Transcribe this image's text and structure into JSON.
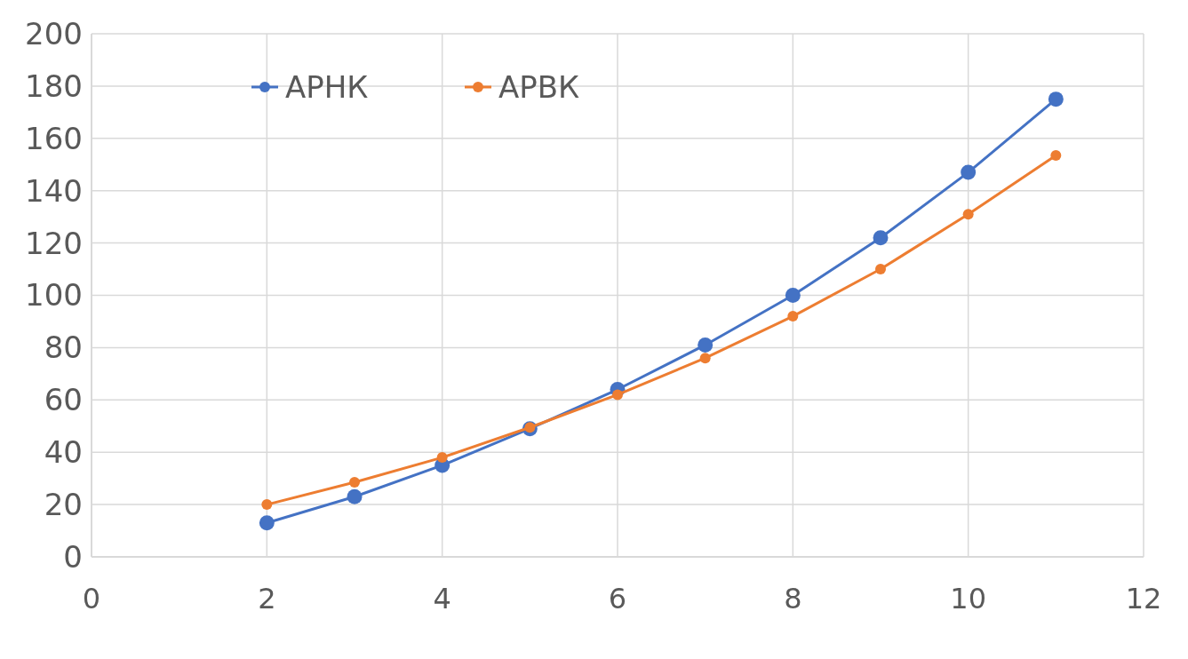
{
  "chart_data": {
    "type": "line",
    "x": [
      2,
      3,
      4,
      5,
      6,
      7,
      8,
      9,
      10,
      11
    ],
    "series": [
      {
        "name": "АРНК",
        "color": "#4472c4",
        "values": [
          13,
          23,
          35,
          49,
          64,
          81,
          100,
          122,
          147,
          175
        ]
      },
      {
        "name": "АРВК",
        "color": "#ed7d31",
        "values": [
          20,
          28.5,
          38,
          49.5,
          62,
          76,
          92,
          110,
          131,
          153.5
        ]
      }
    ],
    "xlim": [
      0,
      12
    ],
    "xticks": [
      0,
      2,
      4,
      6,
      8,
      10,
      12
    ],
    "ylim": [
      0,
      200
    ],
    "yticks": [
      0,
      20,
      40,
      60,
      80,
      100,
      120,
      140,
      160,
      180,
      200
    ],
    "grid": true,
    "legend": "top left",
    "marker": "circle",
    "line_style": "solid"
  }
}
